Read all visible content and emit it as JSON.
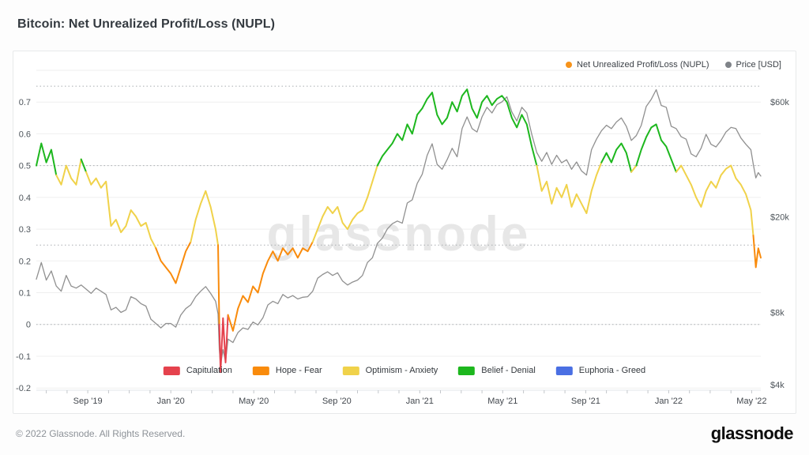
{
  "title": "Bitcoin: Net Unrealized Profit/Loss (NUPL)",
  "watermark": "glassnode",
  "footer": {
    "copyright": "© 2022 Glassnode. All Rights Reserved.",
    "logo": "glassnode"
  },
  "top_legend": [
    {
      "label": "Net Unrealized Profit/Loss (NUPL)",
      "color": "#f7931a"
    },
    {
      "label": "Price [USD]",
      "color": "#7f8388"
    }
  ],
  "chart_data": {
    "type": "line",
    "title": "Bitcoin: Net Unrealized Profit/Loss (NUPL)",
    "grid": true,
    "legend_position": "top-right",
    "series_names": [
      "Net Unrealized Profit/Loss (NUPL)",
      "Price [USD]"
    ],
    "price_color": "#909090",
    "zones": [
      {
        "label": "Capitulation",
        "max": 0,
        "color": "#e5424d"
      },
      {
        "label": "Hope - Fear",
        "max": 0.25,
        "color": "#f98b0c"
      },
      {
        "label": "Optimism - Anxiety",
        "max": 0.5,
        "color": "#f0d24a"
      },
      {
        "label": "Belief - Denial",
        "max": 0.75,
        "color": "#1db71e"
      },
      {
        "label": "Euphoria - Greed",
        "max": 10,
        "color": "#4a6fe3"
      }
    ],
    "left_axis": {
      "range_top": 0.795,
      "range_bottom": -0.207,
      "ticks": [
        {
          "label": "0.7",
          "v": 0.7
        },
        {
          "label": "0.6",
          "v": 0.6
        },
        {
          "label": "0.5",
          "v": 0.5
        },
        {
          "label": "0.4",
          "v": 0.4
        },
        {
          "label": "0.3",
          "v": 0.3
        },
        {
          "label": "0.2",
          "v": 0.2
        },
        {
          "label": "0.1",
          "v": 0.1
        },
        {
          "label": "0",
          "v": 0
        },
        {
          "label": "-0.1",
          "v": -0.1
        },
        {
          "label": "-0.2",
          "v": -0.2
        }
      ],
      "extra_gridlines": [
        0.8
      ],
      "zone_lines": [
        0.75,
        0.5,
        0.25,
        0
      ]
    },
    "right_axis": {
      "scale": "log",
      "range_top": 80000,
      "range_bottom": 3800,
      "ticks": [
        {
          "label": "$60k",
          "v": 60000
        },
        {
          "label": "$20k",
          "v": 20000
        },
        {
          "label": "$8k",
          "v": 8000
        },
        {
          "label": "$4k",
          "v": 4000
        }
      ]
    },
    "x_axis": {
      "start_year": 2019.46,
      "end_year": 2022.37,
      "minor_tick_months": 1,
      "labeled_ticks": [
        {
          "label": "Sep '19",
          "year": 2019.6667
        },
        {
          "label": "Jan '20",
          "year": 2020.0
        },
        {
          "label": "May '20",
          "year": 2020.3333
        },
        {
          "label": "Sep '20",
          "year": 2020.6667
        },
        {
          "label": "Jan '21",
          "year": 2021.0
        },
        {
          "label": "May '21",
          "year": 2021.3333
        },
        {
          "label": "Sep '21",
          "year": 2021.6667
        },
        {
          "label": "Jan '22",
          "year": 2022.0
        },
        {
          "label": "May '22",
          "year": 2022.3333
        }
      ]
    },
    "columns": [
      "year",
      "nupl",
      "price_usd"
    ],
    "points": [
      [
        2019.46,
        0.5,
        11000
      ],
      [
        2019.48,
        0.57,
        12900
      ],
      [
        2019.5,
        0.51,
        10900
      ],
      [
        2019.52,
        0.55,
        11900
      ],
      [
        2019.54,
        0.47,
        10300
      ],
      [
        2019.56,
        0.44,
        9800
      ],
      [
        2019.58,
        0.5,
        11400
      ],
      [
        2019.6,
        0.46,
        10300
      ],
      [
        2019.62,
        0.44,
        10100
      ],
      [
        2019.64,
        0.52,
        10400
      ],
      [
        2019.66,
        0.48,
        10000
      ],
      [
        2019.68,
        0.44,
        9600
      ],
      [
        2019.7,
        0.46,
        10100
      ],
      [
        2019.72,
        0.43,
        9800
      ],
      [
        2019.74,
        0.45,
        9500
      ],
      [
        2019.76,
        0.31,
        8200
      ],
      [
        2019.78,
        0.33,
        8400
      ],
      [
        2019.8,
        0.29,
        8000
      ],
      [
        2019.82,
        0.31,
        8200
      ],
      [
        2019.84,
        0.36,
        9300
      ],
      [
        2019.86,
        0.34,
        9100
      ],
      [
        2019.88,
        0.31,
        8700
      ],
      [
        2019.9,
        0.32,
        8500
      ],
      [
        2019.92,
        0.27,
        7500
      ],
      [
        2019.94,
        0.24,
        7200
      ],
      [
        2019.96,
        0.2,
        6900
      ],
      [
        2019.98,
        0.18,
        7200
      ],
      [
        2020.0,
        0.16,
        7200
      ],
      [
        2020.02,
        0.13,
        6950
      ],
      [
        2020.04,
        0.18,
        7800
      ],
      [
        2020.06,
        0.23,
        8300
      ],
      [
        2020.08,
        0.26,
        8600
      ],
      [
        2020.1,
        0.33,
        9300
      ],
      [
        2020.12,
        0.38,
        9800
      ],
      [
        2020.14,
        0.42,
        10250
      ],
      [
        2020.16,
        0.37,
        9600
      ],
      [
        2020.18,
        0.3,
        8900
      ],
      [
        2020.19,
        0.25,
        7900
      ],
      [
        2020.195,
        0.0,
        5600
      ],
      [
        2020.2,
        -0.15,
        4850
      ],
      [
        2020.21,
        0.02,
        5600
      ],
      [
        2020.22,
        -0.12,
        5000
      ],
      [
        2020.23,
        0.03,
        6200
      ],
      [
        2020.25,
        -0.02,
        6000
      ],
      [
        2020.27,
        0.05,
        6600
      ],
      [
        2020.29,
        0.09,
        6900
      ],
      [
        2020.31,
        0.07,
        6800
      ],
      [
        2020.33,
        0.12,
        7300
      ],
      [
        2020.35,
        0.1,
        7100
      ],
      [
        2020.37,
        0.16,
        7600
      ],
      [
        2020.39,
        0.2,
        8600
      ],
      [
        2020.41,
        0.23,
        8900
      ],
      [
        2020.43,
        0.2,
        8700
      ],
      [
        2020.45,
        0.24,
        9500
      ],
      [
        2020.47,
        0.22,
        9200
      ],
      [
        2020.49,
        0.24,
        9400
      ],
      [
        2020.51,
        0.21,
        9100
      ],
      [
        2020.53,
        0.24,
        9250
      ],
      [
        2020.55,
        0.23,
        9300
      ],
      [
        2020.57,
        0.26,
        9800
      ],
      [
        2020.59,
        0.3,
        11100
      ],
      [
        2020.61,
        0.34,
        11500
      ],
      [
        2020.63,
        0.37,
        11800
      ],
      [
        2020.65,
        0.35,
        11400
      ],
      [
        2020.67,
        0.37,
        11700
      ],
      [
        2020.69,
        0.32,
        10800
      ],
      [
        2020.71,
        0.3,
        10400
      ],
      [
        2020.73,
        0.33,
        10700
      ],
      [
        2020.75,
        0.35,
        10900
      ],
      [
        2020.77,
        0.36,
        11400
      ],
      [
        2020.79,
        0.4,
        12900
      ],
      [
        2020.81,
        0.45,
        13500
      ],
      [
        2020.83,
        0.5,
        15500
      ],
      [
        2020.85,
        0.53,
        16300
      ],
      [
        2020.87,
        0.55,
        17800
      ],
      [
        2020.89,
        0.57,
        18700
      ],
      [
        2020.91,
        0.6,
        19200
      ],
      [
        2020.93,
        0.58,
        18800
      ],
      [
        2020.95,
        0.63,
        22800
      ],
      [
        2020.97,
        0.6,
        23500
      ],
      [
        2020.99,
        0.66,
        27500
      ],
      [
        2021.01,
        0.68,
        30000
      ],
      [
        2021.03,
        0.71,
        36000
      ],
      [
        2021.05,
        0.73,
        40200
      ],
      [
        2021.07,
        0.66,
        33000
      ],
      [
        2021.09,
        0.63,
        31500
      ],
      [
        2021.11,
        0.65,
        34500
      ],
      [
        2021.13,
        0.7,
        38500
      ],
      [
        2021.15,
        0.67,
        35500
      ],
      [
        2021.17,
        0.72,
        46500
      ],
      [
        2021.19,
        0.74,
        52000
      ],
      [
        2021.21,
        0.68,
        46500
      ],
      [
        2021.23,
        0.65,
        45000
      ],
      [
        2021.25,
        0.7,
        52000
      ],
      [
        2021.27,
        0.72,
        57000
      ],
      [
        2021.29,
        0.69,
        54000
      ],
      [
        2021.31,
        0.71,
        58500
      ],
      [
        2021.33,
        0.72,
        60000
      ],
      [
        2021.35,
        0.7,
        63000
      ],
      [
        2021.37,
        0.65,
        54500
      ],
      [
        2021.39,
        0.62,
        50000
      ],
      [
        2021.41,
        0.66,
        57000
      ],
      [
        2021.43,
        0.63,
        54000
      ],
      [
        2021.45,
        0.56,
        44000
      ],
      [
        2021.47,
        0.5,
        37000
      ],
      [
        2021.49,
        0.42,
        34000
      ],
      [
        2021.51,
        0.45,
        37000
      ],
      [
        2021.53,
        0.38,
        33000
      ],
      [
        2021.55,
        0.43,
        36000
      ],
      [
        2021.57,
        0.4,
        33500
      ],
      [
        2021.59,
        0.44,
        34500
      ],
      [
        2021.61,
        0.37,
        31500
      ],
      [
        2021.63,
        0.41,
        33800
      ],
      [
        2021.65,
        0.38,
        31000
      ],
      [
        2021.67,
        0.35,
        29800
      ],
      [
        2021.69,
        0.42,
        38000
      ],
      [
        2021.71,
        0.47,
        42000
      ],
      [
        2021.73,
        0.51,
        45500
      ],
      [
        2021.75,
        0.54,
        48000
      ],
      [
        2021.77,
        0.51,
        46500
      ],
      [
        2021.79,
        0.55,
        49500
      ],
      [
        2021.81,
        0.57,
        51500
      ],
      [
        2021.83,
        0.54,
        47500
      ],
      [
        2021.85,
        0.48,
        41500
      ],
      [
        2021.87,
        0.5,
        43500
      ],
      [
        2021.89,
        0.55,
        48000
      ],
      [
        2021.91,
        0.59,
        57500
      ],
      [
        2021.93,
        0.62,
        61500
      ],
      [
        2021.95,
        0.63,
        67500
      ],
      [
        2021.97,
        0.58,
        58000
      ],
      [
        2021.99,
        0.56,
        57000
      ],
      [
        2022.01,
        0.52,
        47500
      ],
      [
        2022.03,
        0.48,
        46500
      ],
      [
        2022.05,
        0.5,
        43000
      ],
      [
        2022.07,
        0.47,
        42000
      ],
      [
        2022.09,
        0.44,
        36500
      ],
      [
        2022.11,
        0.4,
        35500
      ],
      [
        2022.13,
        0.37,
        38500
      ],
      [
        2022.15,
        0.42,
        44000
      ],
      [
        2022.17,
        0.45,
        40000
      ],
      [
        2022.19,
        0.43,
        39000
      ],
      [
        2022.21,
        0.47,
        41500
      ],
      [
        2022.23,
        0.49,
        45000
      ],
      [
        2022.25,
        0.5,
        47000
      ],
      [
        2022.27,
        0.46,
        46500
      ],
      [
        2022.29,
        0.44,
        42500
      ],
      [
        2022.31,
        0.41,
        40000
      ],
      [
        2022.33,
        0.36,
        38000
      ],
      [
        2022.34,
        0.28,
        33000
      ],
      [
        2022.35,
        0.18,
        29000
      ],
      [
        2022.36,
        0.24,
        30500
      ],
      [
        2022.37,
        0.21,
        29500
      ]
    ]
  }
}
